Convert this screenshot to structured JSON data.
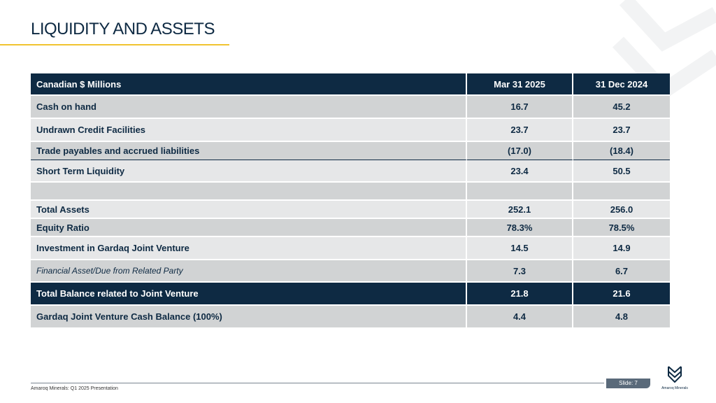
{
  "title": "LIQUIDITY AND ASSETS",
  "table": {
    "headers": [
      "Canadian $ Millions",
      "Mar 31 2025",
      "31 Dec 2024"
    ],
    "rows": [
      {
        "label": "Cash on hand",
        "a": "16.7",
        "b": "45.2"
      },
      {
        "label": "Undrawn Credit Facilities",
        "a": "23.7",
        "b": "23.7"
      },
      {
        "label": "Trade payables and accrued liabilities",
        "a": "(17.0)",
        "b": "(18.4)"
      },
      {
        "label": "Short Term Liquidity",
        "a": "23.4",
        "b": "50.5"
      },
      {
        "label": "",
        "a": "",
        "b": ""
      },
      {
        "label": "Total Assets",
        "a": "252.1",
        "b": "256.0"
      },
      {
        "label": "Equity Ratio",
        "a": "78.3%",
        "b": "78.5%"
      },
      {
        "label": "Investment in Gardaq Joint Venture",
        "a": "14.5",
        "b": "14.9"
      },
      {
        "label": "Financial Asset/Due from Related Party",
        "a": "7.3",
        "b": "6.7"
      },
      {
        "label": "Total Balance related to Joint Venture",
        "a": "21.8",
        "b": "21.6"
      },
      {
        "label": "Gardaq Joint Venture Cash Balance (100%)",
        "a": "4.4",
        "b": "4.8"
      }
    ]
  },
  "footer": {
    "text": "Amaroq Minerals: Q1 2025 Presentation",
    "slide": "Slide: 7",
    "logo_text": "Amaroq Minerals"
  },
  "colors": {
    "navy": "#0e2a43",
    "accent": "#f0c330"
  }
}
